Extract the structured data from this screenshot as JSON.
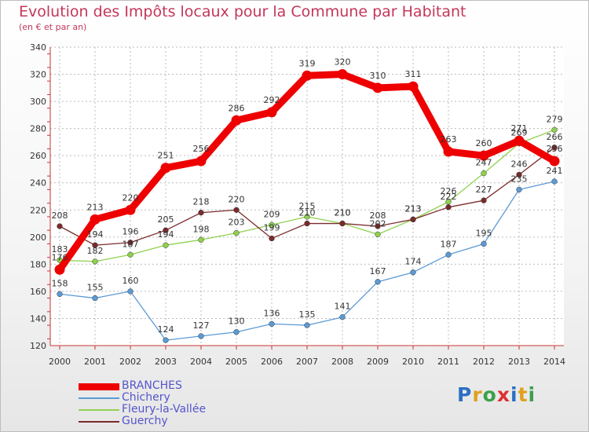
{
  "title": "Evolution des Impôts locaux pour la Commune par Habitant",
  "subtitle": "(en € et par an)",
  "logo": {
    "text": "Proxiti",
    "letter_colors": [
      "#2b6fc4",
      "#e0a020",
      "#3aa04a",
      "#e03030",
      "#2b6fc4",
      "#e0a020",
      "#3aa04a"
    ]
  },
  "chart_data": {
    "type": "line",
    "title": "Evolution des Impôts locaux pour la Commune par Habitant",
    "subtitle": "(en € et par an)",
    "xlabel": "",
    "ylabel": "",
    "ylim": [
      120,
      340
    ],
    "yticks": [
      120,
      140,
      160,
      180,
      200,
      220,
      240,
      260,
      280,
      300,
      320,
      340
    ],
    "grid": true,
    "legend_position": "bottom-left",
    "x": [
      "2000",
      "2001",
      "2002",
      "2003",
      "2004",
      "2005",
      "2006",
      "2007",
      "2008",
      "2009",
      "2010",
      "2011",
      "2012",
      "2013",
      "2014"
    ],
    "series": [
      {
        "name": "BRANCHES",
        "color": "#ee0000",
        "values": [
          176,
          213,
          220,
          251,
          256,
          286,
          292,
          319,
          320,
          310,
          311,
          263,
          260,
          271,
          256
        ],
        "labels": [
          "176",
          "213",
          "220",
          "251",
          "256",
          "286",
          "292",
          "319",
          "320",
          "310",
          "311",
          "263",
          "260",
          "271",
          "256"
        ]
      },
      {
        "name": "Chichery",
        "color": "#5b9bd5",
        "values": [
          158,
          155,
          160,
          124,
          127,
          130,
          136,
          135,
          141,
          167,
          174,
          187,
          195,
          235,
          241
        ],
        "labels": [
          "158",
          "155",
          "160",
          "124",
          "127",
          "130",
          "136",
          "135",
          "141",
          "167",
          "174",
          "187",
          "195",
          "235",
          "241"
        ]
      },
      {
        "name": "Fleury-la-Vallée",
        "color": "#8fd14f",
        "values": [
          183,
          182,
          187,
          194,
          198,
          203,
          209,
          215,
          210,
          202,
          213,
          226,
          247,
          269,
          279
        ],
        "labels": [
          "183",
          "182",
          "187",
          "194",
          "198",
          "203",
          "209",
          "215",
          "210",
          "202",
          "213",
          "226",
          "247",
          "269",
          "279"
        ]
      },
      {
        "name": "Guerchy",
        "color": "#7a2b2b",
        "values": [
          208,
          194,
          196,
          205,
          218,
          220,
          199,
          210,
          210,
          208,
          213,
          222,
          227,
          246,
          266
        ],
        "labels": [
          "208",
          "194",
          "196",
          "205",
          "218",
          "220",
          "199",
          "210",
          "210",
          "208",
          "213",
          "222",
          "227",
          "246",
          "266"
        ]
      }
    ]
  }
}
